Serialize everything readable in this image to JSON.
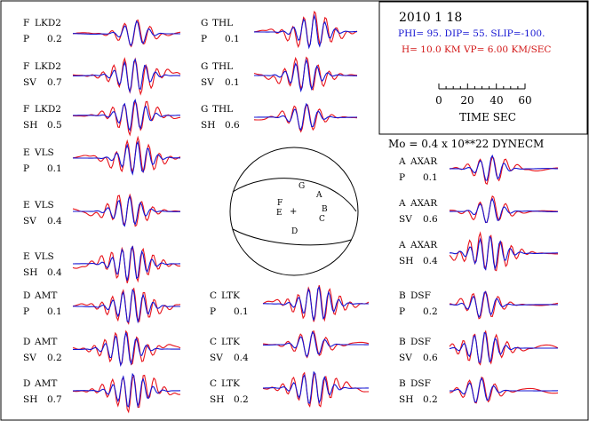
{
  "header": {
    "date": "2010  1 18",
    "mechanism": "PHI=  95. DIP= 55. SLIP=-100.",
    "depth_velocity": "H= 10.0 KM  VP= 6.00 KM/SEC",
    "time_scale": {
      "ticks": [
        "0",
        "20",
        "40",
        "60"
      ],
      "label": "TIME  SEC"
    },
    "moment": "Mo =  0.4 x 10**22 DYNECM"
  },
  "colors": {
    "observed": "#e8141c",
    "synthetic": "#1414d2",
    "header_blue": "#1414d2",
    "header_red": "#d21414",
    "ink": "#000000"
  },
  "stations": [
    {
      "code": "F",
      "name": "LKD2",
      "comp": "P",
      "amp": "0.2"
    },
    {
      "code": "F",
      "name": "LKD2",
      "comp": "SV",
      "amp": "0.7"
    },
    {
      "code": "F",
      "name": "LKD2",
      "comp": "SH",
      "amp": "0.5"
    },
    {
      "code": "E",
      "name": "VLS",
      "comp": "P",
      "amp": "0.1"
    },
    {
      "code": "E",
      "name": "VLS",
      "comp": "SV",
      "amp": "0.4"
    },
    {
      "code": "E",
      "name": "VLS",
      "comp": "SH",
      "amp": "0.4"
    },
    {
      "code": "D",
      "name": "AMT",
      "comp": "P",
      "amp": "0.1"
    },
    {
      "code": "D",
      "name": "AMT",
      "comp": "SV",
      "amp": "0.2"
    },
    {
      "code": "D",
      "name": "AMT",
      "comp": "SH",
      "amp": "0.7"
    },
    {
      "code": "G",
      "name": "THL",
      "comp": "P",
      "amp": "0.1"
    },
    {
      "code": "G",
      "name": "THL",
      "comp": "SV",
      "amp": "0.1"
    },
    {
      "code": "G",
      "name": "THL",
      "comp": "SH",
      "amp": "0.6"
    },
    {
      "code": "C",
      "name": "LTK",
      "comp": "P",
      "amp": "0.1"
    },
    {
      "code": "C",
      "name": "LTK",
      "comp": "SV",
      "amp": "0.4"
    },
    {
      "code": "C",
      "name": "LTK",
      "comp": "SH",
      "amp": "0.2"
    },
    {
      "code": "A",
      "name": "AXAR",
      "comp": "P",
      "amp": "0.1"
    },
    {
      "code": "A",
      "name": "AXAR",
      "comp": "SV",
      "amp": "0.6"
    },
    {
      "code": "A",
      "name": "AXAR",
      "comp": "SH",
      "amp": "0.4"
    },
    {
      "code": "B",
      "name": "DSF",
      "comp": "P",
      "amp": "0.2"
    },
    {
      "code": "B",
      "name": "DSF",
      "comp": "SV",
      "amp": "0.6"
    },
    {
      "code": "B",
      "name": "DSF",
      "comp": "SH",
      "amp": "0.2"
    }
  ],
  "beachball": {
    "station_letters": [
      "G",
      "A",
      "F",
      "B",
      "E",
      "C",
      "D"
    ],
    "center_mark": "+"
  }
}
